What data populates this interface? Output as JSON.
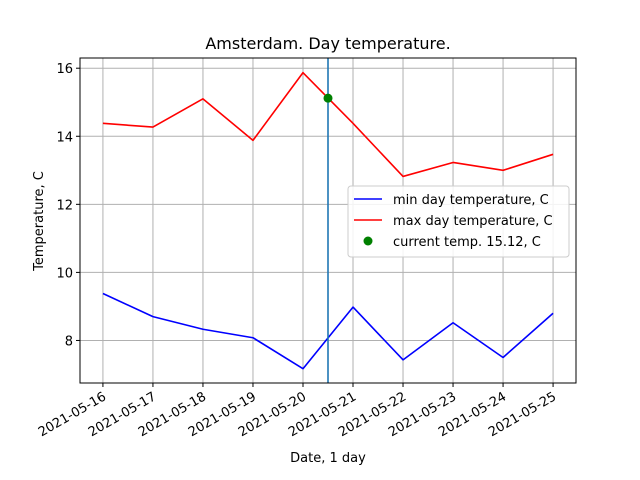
{
  "chart_data": {
    "type": "line",
    "title": "Amsterdam. Day temperature.",
    "xlabel": "Date, 1 day",
    "ylabel": "Temperature, C",
    "x": [
      "2021-05-16",
      "2021-05-17",
      "2021-05-18",
      "2021-05-19",
      "2021-05-20",
      "2021-05-21",
      "2021-05-22",
      "2021-05-23",
      "2021-05-24",
      "2021-05-25"
    ],
    "x_ticks": [
      "2021-05-16",
      "2021-05-17",
      "2021-05-18",
      "2021-05-19",
      "2021-05-20",
      "2021-05-21",
      "2021-05-22",
      "2021-05-23",
      "2021-05-24",
      "2021-05-25"
    ],
    "y_ticks": [
      8,
      10,
      12,
      14,
      16
    ],
    "ylim": [
      6.75,
      16.3
    ],
    "xlim": [
      "2021-05-15 13:00",
      "2021-05-25 11:00"
    ],
    "grid": true,
    "legend_position": "center-right",
    "series": [
      {
        "name": "min day temperature, C",
        "color": "#0000ff",
        "values": [
          9.38,
          8.7,
          8.33,
          8.08,
          7.17,
          8.98,
          7.43,
          8.52,
          7.5,
          8.8
        ]
      },
      {
        "name": "max day temperature, C",
        "color": "#ff0000",
        "values": [
          14.38,
          14.27,
          15.1,
          13.88,
          15.87,
          14.38,
          12.82,
          13.23,
          13.0,
          13.47
        ]
      }
    ],
    "current": {
      "label": "current temp. 15.12, C",
      "x": "2021-05-20 12:00",
      "y": 15.12,
      "color": "#008000"
    },
    "vertical_line": {
      "x": "2021-05-20 12:00",
      "color": "#1f77b4"
    }
  }
}
